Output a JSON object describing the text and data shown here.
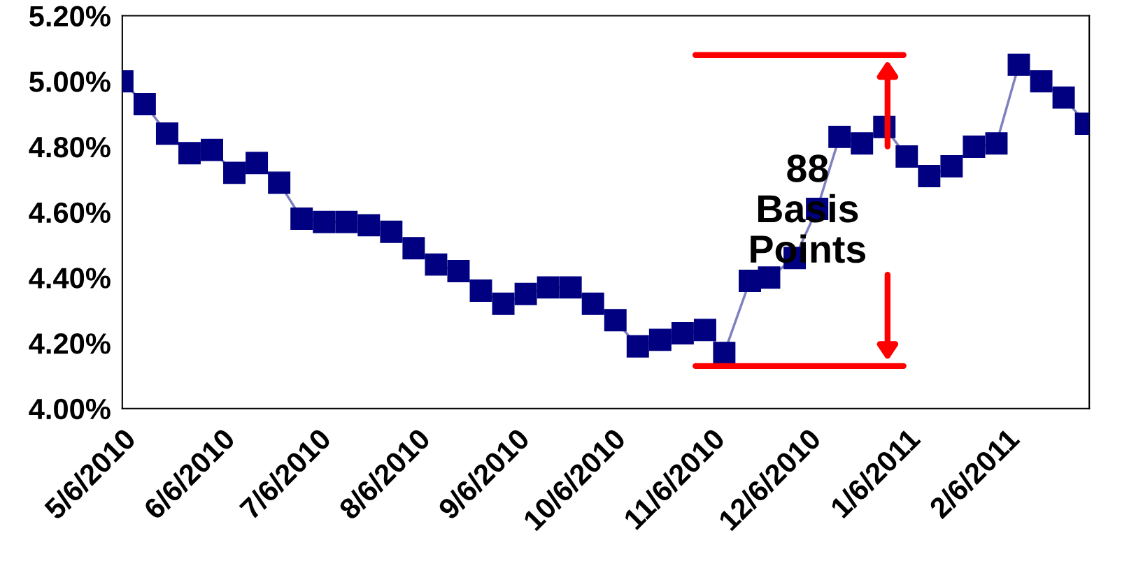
{
  "chart_data": {
    "type": "line",
    "x": [
      "2010-05-06",
      "2010-05-13",
      "2010-05-20",
      "2010-05-27",
      "2010-06-03",
      "2010-06-10",
      "2010-06-17",
      "2010-06-24",
      "2010-07-01",
      "2010-07-08",
      "2010-07-15",
      "2010-07-22",
      "2010-07-29",
      "2010-08-05",
      "2010-08-12",
      "2010-08-19",
      "2010-08-26",
      "2010-09-02",
      "2010-09-09",
      "2010-09-16",
      "2010-09-23",
      "2010-09-30",
      "2010-10-07",
      "2010-10-14",
      "2010-10-21",
      "2010-10-28",
      "2010-11-04",
      "2010-11-10",
      "2010-11-18",
      "2010-11-24",
      "2010-12-02",
      "2010-12-09",
      "2010-12-16",
      "2010-12-23",
      "2010-12-30",
      "2011-01-06",
      "2011-01-13",
      "2011-01-20",
      "2011-01-27",
      "2011-02-03",
      "2011-02-10",
      "2011-02-17",
      "2011-02-24",
      "2011-03-03"
    ],
    "series": [
      {
        "color": "#000080",
        "values": [
          5.0,
          4.93,
          4.84,
          4.78,
          4.79,
          4.72,
          4.75,
          4.69,
          4.58,
          4.57,
          4.57,
          4.56,
          4.54,
          4.49,
          4.44,
          4.42,
          4.36,
          4.32,
          4.35,
          4.37,
          4.37,
          4.32,
          4.27,
          4.19,
          4.21,
          4.23,
          4.24,
          4.17,
          4.39,
          4.4,
          4.46,
          4.61,
          4.83,
          4.81,
          4.86,
          4.77,
          4.71,
          4.74,
          4.8,
          4.81,
          5.05,
          5.0,
          4.95,
          4.87
        ]
      }
    ],
    "marker": "square",
    "line_style": "solid",
    "grid": false,
    "legend": false,
    "ylim": [
      4.0,
      5.2
    ],
    "yticks": [
      {
        "value": 4.0,
        "label": "4.00%"
      },
      {
        "value": 4.2,
        "label": "4.20%"
      },
      {
        "value": 4.4,
        "label": "4.40%"
      },
      {
        "value": 4.6,
        "label": "4.60%"
      },
      {
        "value": 4.8,
        "label": "4.80%"
      },
      {
        "value": 5.0,
        "label": "5.00%"
      },
      {
        "value": 5.2,
        "label": "5.20%"
      }
    ],
    "xlim": [
      "2010-05-06",
      "2011-03-04"
    ],
    "xticks": [
      {
        "value": "2010-05-06",
        "label": "5/6/2010"
      },
      {
        "value": "2010-06-06",
        "label": "6/6/2010"
      },
      {
        "value": "2010-07-06",
        "label": "7/6/2010"
      },
      {
        "value": "2010-08-06",
        "label": "8/6/2010"
      },
      {
        "value": "2010-09-06",
        "label": "9/6/2010"
      },
      {
        "value": "2010-10-06",
        "label": "10/6/2010"
      },
      {
        "value": "2010-11-06",
        "label": "11/6/2010"
      },
      {
        "value": "2010-12-06",
        "label": "12/6/2010"
      },
      {
        "value": "2011-01-06",
        "label": "1/6/2011"
      },
      {
        "value": "2011-02-06",
        "label": "2/6/2011"
      }
    ],
    "ref_lines": [
      {
        "axis": "y",
        "value": 5.08,
        "color": "#ff0000"
      },
      {
        "axis": "y",
        "value": 4.13,
        "color": "#ff0000"
      }
    ],
    "annotations": [
      {
        "text": "88\nBasis\nPoints",
        "x": "2010-12-06",
        "y": 4.6
      }
    ]
  }
}
